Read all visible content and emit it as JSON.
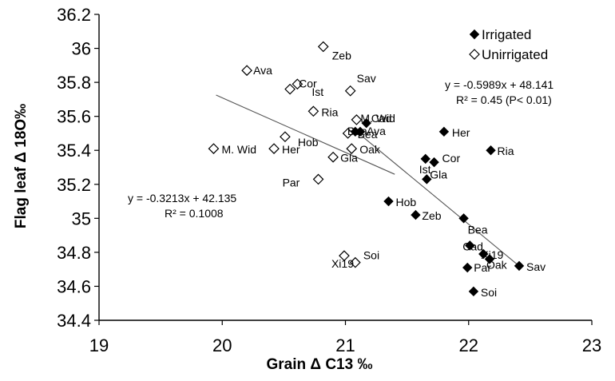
{
  "chart_data": {
    "type": "scatter",
    "xlabel": "Grain  Δ C13 ‰",
    "ylabel": "Flag leaf  Δ 18O‰",
    "xlim": [
      19,
      23
    ],
    "ylim": [
      34.4,
      36.2
    ],
    "x_ticks": [
      "19",
      "20",
      "21",
      "22",
      "23"
    ],
    "y_ticks": [
      "34.4",
      "34.6",
      "34.8",
      "35",
      "35.2",
      "35.4",
      "35.6",
      "35.8",
      "36",
      "36.2"
    ],
    "legend_position": "top-right",
    "grid": false,
    "series": [
      {
        "name": "Irrigated",
        "marker": "filled-diamond",
        "color": "#000000",
        "points": [
          {
            "x": 21.12,
            "y": 35.51,
            "label": "Ava"
          },
          {
            "x": 21.08,
            "y": 35.51,
            "label": "Bea"
          },
          {
            "x": 21.17,
            "y": 35.56,
            "label": "Cad"
          },
          {
            "x": 21.8,
            "y": 35.51,
            "label": "Her"
          },
          {
            "x": 22.18,
            "y": 35.4,
            "label": "Ria"
          },
          {
            "x": 21.65,
            "y": 35.35,
            "label": "Ist"
          },
          {
            "x": 21.72,
            "y": 35.33,
            "label": "Cor"
          },
          {
            "x": 21.66,
            "y": 35.23,
            "label": "Gla"
          },
          {
            "x": 21.35,
            "y": 35.1,
            "label": "Hob"
          },
          {
            "x": 21.57,
            "y": 35.02,
            "label": "Zeb"
          },
          {
            "x": 21.96,
            "y": 35.0,
            "label": "Bea"
          },
          {
            "x": 22.01,
            "y": 34.84,
            "label": "Cad"
          },
          {
            "x": 22.12,
            "y": 34.79,
            "label": "Xi19"
          },
          {
            "x": 22.17,
            "y": 34.76,
            "label": "Oak"
          },
          {
            "x": 22.41,
            "y": 34.72,
            "label": "Sav"
          },
          {
            "x": 21.99,
            "y": 34.71,
            "label": "Par"
          },
          {
            "x": 22.04,
            "y": 34.57,
            "label": "Soi"
          }
        ]
      },
      {
        "name": "Unirrigated",
        "marker": "open-diamond",
        "color": "#000000",
        "points": [
          {
            "x": 20.82,
            "y": 36.01,
            "label": "Zeb"
          },
          {
            "x": 20.2,
            "y": 35.87,
            "label": "Ava"
          },
          {
            "x": 20.55,
            "y": 35.76,
            "label": "Cor"
          },
          {
            "x": 20.61,
            "y": 35.79,
            "label": "Ist"
          },
          {
            "x": 21.04,
            "y": 35.75,
            "label": "Sav"
          },
          {
            "x": 20.74,
            "y": 35.63,
            "label": "Ria"
          },
          {
            "x": 21.09,
            "y": 35.58,
            "label": "M. Wid"
          },
          {
            "x": 20.51,
            "y": 35.48,
            "label": "Hob"
          },
          {
            "x": 21.02,
            "y": 35.5,
            "label": "Bea"
          },
          {
            "x": 20.42,
            "y": 35.41,
            "label": "Her"
          },
          {
            "x": 19.93,
            "y": 35.41,
            "label": "M. Wid"
          },
          {
            "x": 21.05,
            "y": 35.41,
            "label": "Oak"
          },
          {
            "x": 20.9,
            "y": 35.36,
            "label": "Gla"
          },
          {
            "x": 20.78,
            "y": 35.23,
            "label": "Par"
          },
          {
            "x": 20.99,
            "y": 34.78,
            "label": "Xi19"
          },
          {
            "x": 21.08,
            "y": 34.74,
            "label": "Soi"
          }
        ]
      }
    ],
    "trendlines": [
      {
        "series": "Irrigated",
        "slope": -0.5989,
        "intercept": 48.141,
        "x_range": [
          21.05,
          22.42
        ]
      },
      {
        "series": "Unirrigated",
        "slope": -0.3213,
        "intercept": 42.135,
        "x_range": [
          19.95,
          21.4
        ]
      }
    ],
    "annotations": [
      {
        "text": "y = -0.5989x + 48.141"
      },
      {
        "text": "R² = 0.45 (P< 0.01)"
      },
      {
        "text": "y = -0.3213x + 42.135"
      },
      {
        "text": "R² = 0.1008"
      }
    ]
  }
}
